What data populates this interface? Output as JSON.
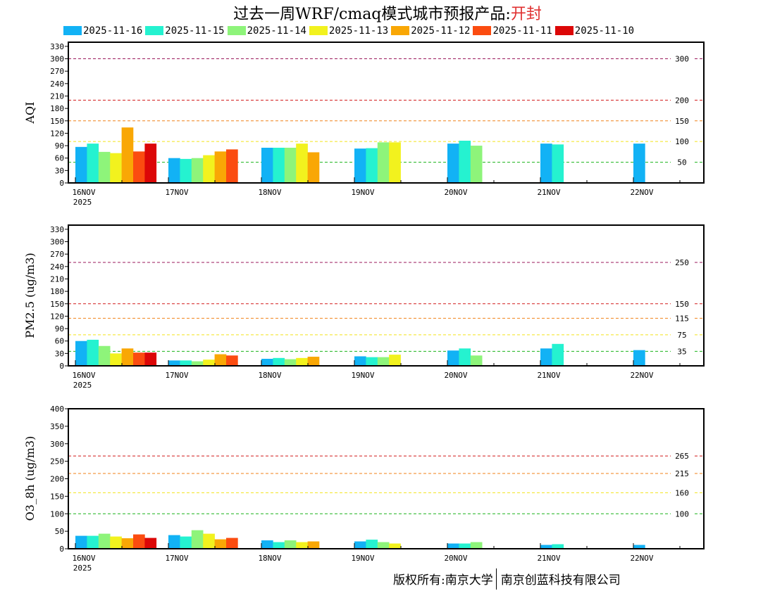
{
  "title": {
    "prefix": "过去一周WRF/cmaq模式城市预报产品:",
    "city": "开封"
  },
  "legend": [
    {
      "name": "2025-11-16",
      "color": "#12b2f5"
    },
    {
      "name": "2025-11-15",
      "color": "#25f2d0"
    },
    {
      "name": "2025-11-14",
      "color": "#8ef47a"
    },
    {
      "name": "2025-11-13",
      "color": "#f2f21e"
    },
    {
      "name": "2025-11-12",
      "color": "#f9a705"
    },
    {
      "name": "2025-11-11",
      "color": "#fb4c10"
    },
    {
      "name": "2025-11-10",
      "color": "#dc0707"
    }
  ],
  "x_axis": {
    "ticks": [
      "16NOV",
      "17NOV",
      "18NOV",
      "19NOV",
      "20NOV",
      "21NOV",
      "22NOV"
    ],
    "year": "2025"
  },
  "copyright": {
    "left": "版权所有:南京大学",
    "right": "南京创蓝科技有限公司"
  },
  "chart_data": [
    {
      "type": "bar",
      "ylabel": "AQI",
      "ylim": [
        0,
        340
      ],
      "yticks": [
        0,
        30,
        60,
        90,
        120,
        150,
        180,
        210,
        240,
        270,
        300,
        330
      ],
      "categories": [
        "16NOV",
        "17NOV",
        "18NOV",
        "19NOV",
        "20NOV",
        "21NOV",
        "22NOV"
      ],
      "series": [
        {
          "name": "2025-11-16",
          "values": [
            87,
            60,
            85,
            83,
            95,
            95,
            95
          ]
        },
        {
          "name": "2025-11-15",
          "values": [
            95,
            58,
            85,
            84,
            102,
            93,
            null
          ]
        },
        {
          "name": "2025-11-14",
          "values": [
            75,
            60,
            85,
            98,
            90,
            null,
            null
          ]
        },
        {
          "name": "2025-11-13",
          "values": [
            72,
            67,
            95,
            98,
            null,
            null,
            null
          ]
        },
        {
          "name": "2025-11-12",
          "values": [
            134,
            76,
            74,
            null,
            null,
            null,
            null
          ]
        },
        {
          "name": "2025-11-11",
          "values": [
            76,
            81,
            null,
            null,
            null,
            null,
            null
          ]
        },
        {
          "name": "2025-11-10",
          "values": [
            95,
            null,
            null,
            null,
            null,
            null,
            null
          ]
        }
      ],
      "thresholds": [
        {
          "value": 300,
          "label": "300",
          "color": "#9b1a5c"
        },
        {
          "value": 200,
          "label": "200",
          "color": "#d21a1a"
        },
        {
          "value": 150,
          "label": "150",
          "color": "#f0821a"
        },
        {
          "value": 100,
          "label": "100",
          "color": "#f2e41a"
        },
        {
          "value": 50,
          "label": "50",
          "color": "#1ab41a"
        }
      ]
    },
    {
      "type": "bar",
      "ylabel": "PM2.5 (ug/m3)",
      "ylim": [
        0,
        340
      ],
      "yticks": [
        0,
        30,
        60,
        90,
        120,
        150,
        180,
        210,
        240,
        270,
        300,
        330
      ],
      "categories": [
        "16NOV",
        "17NOV",
        "18NOV",
        "19NOV",
        "20NOV",
        "21NOV",
        "22NOV"
      ],
      "series": [
        {
          "name": "2025-11-16",
          "values": [
            60,
            13,
            17,
            23,
            37,
            42,
            38
          ]
        },
        {
          "name": "2025-11-15",
          "values": [
            63,
            13,
            19,
            21,
            42,
            53,
            null
          ]
        },
        {
          "name": "2025-11-14",
          "values": [
            48,
            11,
            16,
            21,
            25,
            null,
            null
          ]
        },
        {
          "name": "2025-11-13",
          "values": [
            30,
            15,
            19,
            27,
            null,
            null,
            null
          ]
        },
        {
          "name": "2025-11-12",
          "values": [
            42,
            28,
            22,
            null,
            null,
            null,
            null
          ]
        },
        {
          "name": "2025-11-11",
          "values": [
            32,
            25,
            null,
            null,
            null,
            null,
            null
          ]
        },
        {
          "name": "2025-11-10",
          "values": [
            32,
            null,
            null,
            null,
            null,
            null,
            null
          ]
        }
      ],
      "thresholds": [
        {
          "value": 250,
          "label": "250",
          "color": "#9b1a5c"
        },
        {
          "value": 150,
          "label": "150",
          "color": "#d21a1a"
        },
        {
          "value": 115,
          "label": "115",
          "color": "#f0821a"
        },
        {
          "value": 75,
          "label": "75",
          "color": "#f2e41a"
        },
        {
          "value": 35,
          "label": "35",
          "color": "#1ab41a"
        }
      ]
    },
    {
      "type": "bar",
      "ylabel": "O3_8h (ug/m3)",
      "ylim": [
        0,
        400
      ],
      "yticks": [
        0,
        50,
        100,
        150,
        200,
        250,
        300,
        350,
        400
      ],
      "categories": [
        "16NOV",
        "17NOV",
        "18NOV",
        "19NOV",
        "20NOV",
        "21NOV",
        "22NOV"
      ],
      "series": [
        {
          "name": "2025-11-16",
          "values": [
            37,
            39,
            24,
            21,
            15,
            11,
            11
          ]
        },
        {
          "name": "2025-11-15",
          "values": [
            37,
            35,
            19,
            26,
            15,
            13,
            null
          ]
        },
        {
          "name": "2025-11-14",
          "values": [
            43,
            53,
            24,
            19,
            19,
            null,
            null
          ]
        },
        {
          "name": "2025-11-13",
          "values": [
            35,
            43,
            19,
            15,
            null,
            null,
            null
          ]
        },
        {
          "name": "2025-11-12",
          "values": [
            30,
            27,
            21,
            null,
            null,
            null,
            null
          ]
        },
        {
          "name": "2025-11-11",
          "values": [
            41,
            31,
            null,
            null,
            null,
            null,
            null
          ]
        },
        {
          "name": "2025-11-10",
          "values": [
            31,
            null,
            null,
            null,
            null,
            null,
            null
          ]
        }
      ],
      "thresholds": [
        {
          "value": 265,
          "label": "265",
          "color": "#d21a1a"
        },
        {
          "value": 215,
          "label": "215",
          "color": "#f0821a"
        },
        {
          "value": 160,
          "label": "160",
          "color": "#f2e41a"
        },
        {
          "value": 100,
          "label": "100",
          "color": "#1ab41a"
        }
      ]
    }
  ]
}
